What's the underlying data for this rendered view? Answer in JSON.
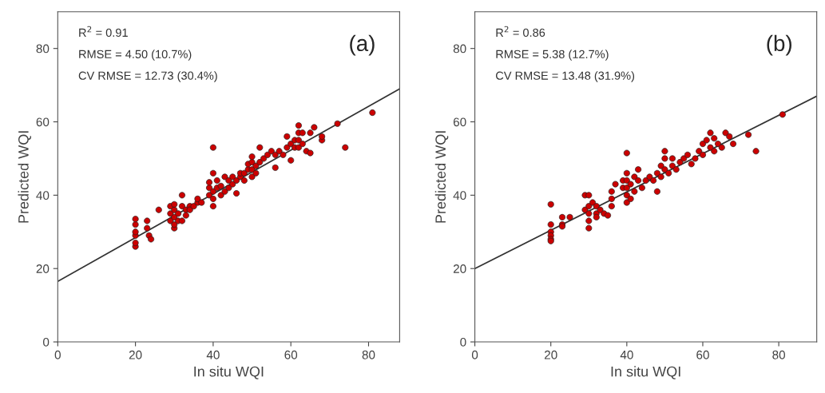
{
  "chart_data": [
    {
      "type": "scatter",
      "title": "(a)",
      "xlabel": "In situ WQI",
      "ylabel": "Predicted WQI",
      "xlim": [
        0,
        88
      ],
      "ylim": [
        0,
        90
      ],
      "xticks": [
        0,
        20,
        40,
        60,
        80
      ],
      "yticks": [
        0,
        20,
        40,
        60,
        80
      ],
      "grid": false,
      "marker": "circle",
      "annotations": [
        "R$^{2}$ = 0.91",
        "RMSE = 4.50 (10.7%)",
        "CV RMSE = 12.73 (30.4%)"
      ],
      "series": [
        {
          "color": "#cc0000",
          "x": [
            20,
            20,
            20,
            20,
            20,
            20,
            23,
            23,
            23.5,
            24,
            26,
            29,
            29,
            29,
            30,
            30,
            30,
            30,
            30,
            31,
            31,
            32,
            32,
            32,
            33,
            33,
            34,
            34,
            35,
            36,
            36,
            37,
            39,
            39,
            39,
            40,
            40,
            40,
            40,
            40,
            41,
            41,
            42,
            42,
            43,
            43,
            44,
            44,
            45,
            45,
            46,
            46,
            47,
            47,
            48,
            48,
            49,
            49,
            50,
            50,
            50,
            50,
            51,
            51,
            52,
            52,
            53,
            54,
            55,
            56,
            56,
            57,
            58,
            59,
            59,
            60,
            60,
            61,
            61,
            62,
            62,
            62,
            62,
            63,
            63,
            64,
            65,
            65,
            66,
            68,
            68,
            72,
            74,
            81
          ],
          "values": [
            26,
            27,
            29,
            30,
            32,
            33.5,
            33,
            31,
            29,
            28,
            36,
            33,
            35,
            37,
            31,
            32,
            34,
            36,
            37.5,
            35,
            33,
            40,
            37,
            33,
            36,
            34.5,
            37,
            36,
            37,
            38,
            39,
            38,
            40,
            42,
            43.5,
            53,
            46,
            37,
            39,
            41,
            42,
            44,
            40,
            42.5,
            41,
            45,
            42,
            44,
            43,
            45,
            40.5,
            44,
            45,
            46,
            46,
            44,
            47,
            48.5,
            45,
            47,
            49,
            50.5,
            48,
            46,
            49,
            53,
            50,
            51,
            52,
            47.5,
            51,
            52,
            51,
            53,
            56,
            49.5,
            54,
            55,
            53,
            57,
            59,
            55,
            53,
            57,
            54,
            52,
            51.5,
            57,
            58.5,
            55,
            56,
            59.5,
            53,
            62.5
          ]
        },
        {
          "type": "line",
          "color": "#333333",
          "x": [
            0,
            88
          ],
          "values": [
            16.5,
            69
          ],
          "marker": "none"
        }
      ]
    },
    {
      "type": "scatter",
      "title": "(b)",
      "xlabel": "In situ WQI",
      "ylabel": "Predicted WQI",
      "xlim": [
        0,
        90
      ],
      "ylim": [
        0,
        90
      ],
      "xticks": [
        0,
        20,
        40,
        60,
        80
      ],
      "yticks": [
        0,
        20,
        40,
        60,
        80
      ],
      "grid": false,
      "marker": "circle",
      "annotations": [
        "R$^{2}$ = 0.86",
        "RMSE = 5.38 (12.7%)",
        "CV RMSE = 13.48 (31.9%)"
      ],
      "series": [
        {
          "color": "#cc0000",
          "x": [
            20,
            20,
            20,
            20,
            20,
            20,
            23,
            23,
            23,
            25,
            29,
            29,
            30,
            30,
            30,
            30,
            30,
            31,
            32,
            32,
            32,
            33,
            34,
            35,
            36,
            36,
            36,
            37,
            39,
            39,
            40,
            40,
            40,
            40,
            40,
            40,
            41,
            41,
            42,
            42,
            43,
            43,
            44,
            45,
            46,
            47,
            48,
            48,
            49,
            49,
            50,
            50,
            50,
            51,
            52,
            52,
            53,
            54,
            55,
            56,
            57,
            58,
            59,
            60,
            60,
            61,
            62,
            62,
            63,
            63,
            64,
            65,
            66,
            67,
            68,
            72,
            74,
            81
          ],
          "values": [
            37.5,
            32,
            30,
            29,
            28,
            27.5,
            34,
            32,
            31.5,
            34,
            40,
            36,
            37,
            35,
            33,
            31,
            40,
            38,
            37,
            35,
            34,
            36,
            35,
            34.5,
            37,
            39,
            41,
            43,
            44,
            42,
            40,
            38,
            42,
            44,
            46,
            51.5,
            39,
            43,
            41,
            45,
            47,
            44,
            42,
            44,
            45,
            44,
            41,
            46,
            48,
            45,
            50,
            52,
            47,
            46,
            48,
            50,
            47,
            49,
            50,
            51,
            48.5,
            50,
            52,
            54,
            51,
            55,
            57,
            53,
            52,
            55.5,
            54,
            53,
            57,
            56,
            54,
            56.5,
            52,
            62
          ]
        },
        {
          "type": "line",
          "color": "#333333",
          "x": [
            0,
            90
          ],
          "values": [
            20,
            67
          ],
          "marker": "none"
        }
      ]
    }
  ]
}
